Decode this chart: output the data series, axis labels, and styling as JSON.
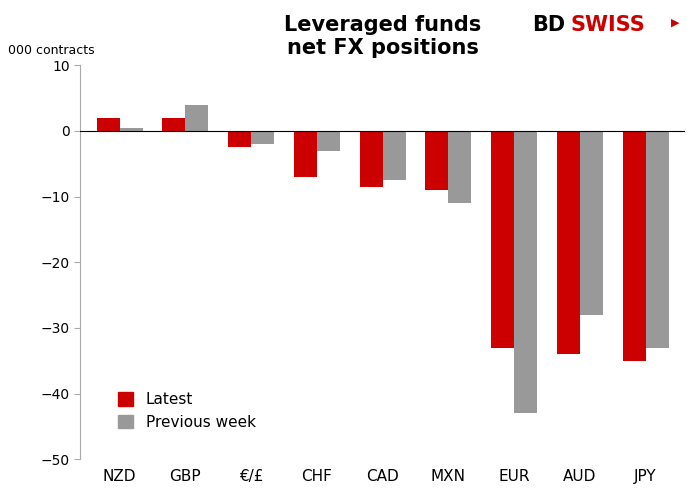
{
  "categories": [
    "NZD",
    "GBP",
    "€/£",
    "CHF",
    "CAD",
    "MXN",
    "EUR",
    "AUD",
    "JPY"
  ],
  "latest": [
    2.0,
    2.0,
    -2.5,
    -7.0,
    -8.5,
    -9.0,
    -33.0,
    -34.0,
    -35.0
  ],
  "previous_week": [
    0.5,
    4.0,
    -2.0,
    -3.0,
    -7.5,
    -11.0,
    -43.0,
    -28.0,
    -33.0
  ],
  "latest_color": "#cc0000",
  "prev_color": "#999999",
  "title": "Leveraged funds\nnet FX positions",
  "ylabel": "000 contracts",
  "ylim": [
    -50,
    10
  ],
  "yticks": [
    10,
    0,
    -10,
    -20,
    -30,
    -40,
    -50
  ],
  "bg_color": "#ffffff",
  "legend_latest": "Latest",
  "legend_prev": "Previous week",
  "bar_width": 0.35
}
